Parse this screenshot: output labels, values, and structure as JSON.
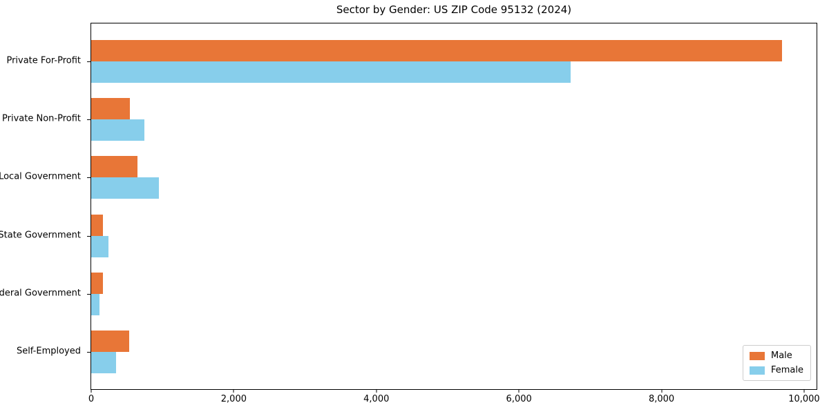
{
  "chart_data": {
    "type": "bar",
    "orientation": "horizontal",
    "title": "Sector by Gender: US ZIP Code 95132 (2024)",
    "categories": [
      "Private For-Profit",
      "Private Non-Profit",
      "Local Government",
      "State Government",
      "Federal Government",
      "Self-Employed"
    ],
    "series": [
      {
        "name": "Male",
        "color": "#e87637",
        "values": [
          9690,
          540,
          650,
          160,
          160,
          530
        ]
      },
      {
        "name": "Female",
        "color": "#87ceeb",
        "values": [
          6730,
          745,
          950,
          240,
          120,
          350
        ]
      }
    ],
    "xlim": [
      0,
      10175
    ],
    "x_ticks": [
      0,
      2000,
      4000,
      6000,
      8000,
      10000
    ],
    "x_tick_labels": [
      "0",
      "2,000",
      "4,000",
      "6,000",
      "8,000",
      "10,000"
    ],
    "ylabel": "",
    "xlabel": "",
    "grid": false,
    "legend_position": "lower right",
    "spines": "full-box",
    "colors": {
      "axis": "#000000",
      "legend_border": "#cccccc",
      "background": "#ffffff"
    }
  }
}
